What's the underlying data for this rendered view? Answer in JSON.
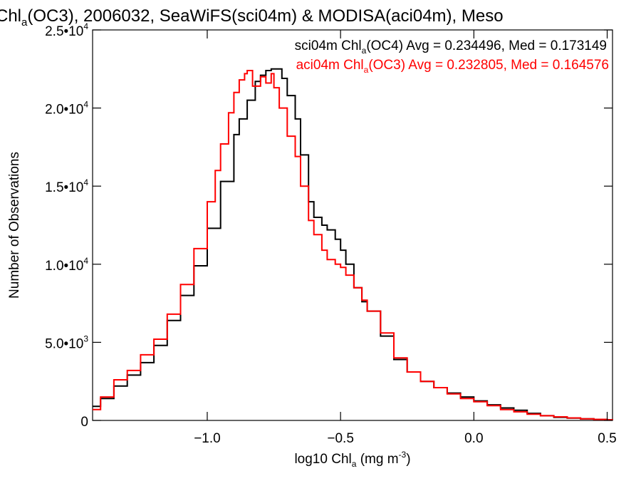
{
  "chart_data": {
    "type": "line",
    "title": {
      "text_before_sub": "Chl",
      "subscript": "a",
      "text_after_sub": "(OC3), 2006032, SeaWiFS(sci04m) & MODISA(aci04m), Meso"
    },
    "xlabel": {
      "before_sub": "log10 Chl",
      "sub": "a",
      "middle": " (mg m",
      "sup": "-3",
      "after": ")"
    },
    "ylabel": "Number of Observations",
    "xlim": [
      -1.43,
      0.52
    ],
    "ylim": [
      0,
      25000
    ],
    "xticks": [
      {
        "value": -1.0,
        "label": "−1.0"
      },
      {
        "value": -0.5,
        "label": "−0.5"
      },
      {
        "value": 0.0,
        "label": "0.0"
      },
      {
        "value": 0.5,
        "label": "0.5"
      }
    ],
    "yticks": [
      {
        "value": 0,
        "mantissa": "0",
        "exponent": ""
      },
      {
        "value": 5000,
        "mantissa": "5.0•10",
        "exponent": "3"
      },
      {
        "value": 10000,
        "mantissa": "1.0•10",
        "exponent": "4"
      },
      {
        "value": 15000,
        "mantissa": "1.5•10",
        "exponent": "4"
      },
      {
        "value": 20000,
        "mantissa": "2.0•10",
        "exponent": "4"
      },
      {
        "value": 25000,
        "mantissa": "2.5•10",
        "exponent": "4"
      }
    ],
    "legend_placement": "top-right",
    "series": [
      {
        "legend": {
          "before_sub": "sci04m Chl",
          "sub": "a",
          "after_sub": "(OC4) Avg = 0.234496, Med = 0.173149"
        },
        "color": "#000000",
        "x": [
          -1.43,
          -1.4,
          -1.35,
          -1.3,
          -1.25,
          -1.2,
          -1.15,
          -1.1,
          -1.05,
          -1.0,
          -0.95,
          -0.9,
          -0.88,
          -0.85,
          -0.82,
          -0.8,
          -0.78,
          -0.76,
          -0.75,
          -0.72,
          -0.7,
          -0.67,
          -0.65,
          -0.62,
          -0.6,
          -0.57,
          -0.55,
          -0.52,
          -0.5,
          -0.48,
          -0.45,
          -0.42,
          -0.4,
          -0.35,
          -0.3,
          -0.25,
          -0.2,
          -0.15,
          -0.1,
          -0.05,
          0.0,
          0.05,
          0.1,
          0.15,
          0.2,
          0.25,
          0.3,
          0.35,
          0.4,
          0.45,
          0.5,
          0.52
        ],
        "y": [
          900,
          1400,
          2200,
          2900,
          3700,
          4800,
          6400,
          8000,
          9900,
          12300,
          15300,
          18300,
          19300,
          20500,
          21700,
          22100,
          22400,
          22500,
          22500,
          21900,
          20800,
          19300,
          17000,
          14000,
          13000,
          12500,
          12200,
          11600,
          10900,
          10000,
          8500,
          7600,
          7000,
          5400,
          3900,
          3100,
          2500,
          2100,
          1750,
          1500,
          1250,
          1000,
          800,
          650,
          450,
          300,
          200,
          150,
          100,
          60,
          40,
          30
        ]
      },
      {
        "legend": {
          "before_sub": "aci04m Chl",
          "sub": "a",
          "after_sub": "(OC3) Avg = 0.232805, Med = 0.164576"
        },
        "color": "#ff0000",
        "x": [
          -1.43,
          -1.4,
          -1.35,
          -1.3,
          -1.25,
          -1.2,
          -1.15,
          -1.1,
          -1.05,
          -1.0,
          -0.97,
          -0.95,
          -0.92,
          -0.9,
          -0.88,
          -0.86,
          -0.85,
          -0.83,
          -0.8,
          -0.78,
          -0.76,
          -0.75,
          -0.73,
          -0.7,
          -0.67,
          -0.65,
          -0.62,
          -0.6,
          -0.57,
          -0.55,
          -0.52,
          -0.5,
          -0.48,
          -0.45,
          -0.42,
          -0.4,
          -0.35,
          -0.3,
          -0.25,
          -0.2,
          -0.15,
          -0.1,
          -0.05,
          0.0,
          0.05,
          0.1,
          0.15,
          0.2,
          0.25,
          0.3,
          0.35,
          0.4,
          0.45,
          0.5,
          0.52
        ],
        "y": [
          700,
          1500,
          2600,
          3200,
          4200,
          5200,
          6800,
          8700,
          11000,
          14000,
          16000,
          17700,
          19700,
          21000,
          21800,
          22200,
          22400,
          21400,
          22000,
          21600,
          22200,
          21300,
          20000,
          18200,
          16900,
          15000,
          12800,
          11900,
          10900,
          10300,
          10000,
          9800,
          9300,
          8500,
          7700,
          7000,
          5600,
          4000,
          3100,
          2500,
          2100,
          1700,
          1400,
          1200,
          950,
          700,
          550,
          400,
          300,
          230,
          160,
          100,
          70,
          40,
          30
        ]
      }
    ]
  }
}
